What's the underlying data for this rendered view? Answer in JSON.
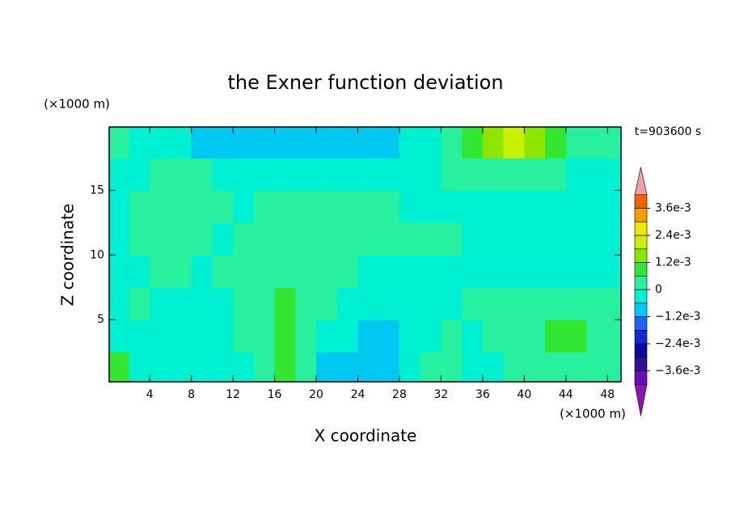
{
  "chart_data": {
    "type": "contour",
    "title": "the Exner function deviation",
    "x_label": "X coordinate",
    "y_label": "Z coordinate",
    "x_units": "(×1000 m)",
    "y_units": "(×1000 m)",
    "time_label": "t=903600 s",
    "xlim": [
      0.1,
      49.3
    ],
    "ylim": [
      0.2,
      19.9
    ],
    "xticks": [
      4,
      8,
      12,
      16,
      20,
      24,
      28,
      32,
      36,
      40,
      44,
      48
    ],
    "yticks": [
      5,
      10,
      15
    ],
    "x": [
      1,
      3,
      5,
      7,
      9,
      11,
      13,
      15,
      17,
      19,
      21,
      23,
      25,
      27,
      29,
      31,
      33,
      35,
      37,
      39,
      41,
      43,
      45,
      47,
      49
    ],
    "y": [
      1.25,
      3.75,
      6.25,
      8.75,
      11.25,
      13.75,
      16.25,
      18.75
    ],
    "z": [
      [
        0.0009,
        -0.0003,
        -0.0003,
        -0.0003,
        -0.0003,
        -0.0003,
        -0.0003,
        0.0003,
        0.0009,
        0.0003,
        -0.0008,
        -0.0008,
        -0.0008,
        -0.0008,
        -0.0003,
        0.0003,
        0.0003,
        -0.0003,
        -0.0003,
        0.0003,
        0.0003,
        0.0003,
        0.0003,
        0.0003,
        0.0003
      ],
      [
        -0.0003,
        -0.0003,
        -0.0003,
        -0.0003,
        -0.0003,
        -0.0003,
        0.0003,
        0.0003,
        0.0009,
        0.0003,
        -0.0003,
        -0.0003,
        -0.0008,
        -0.0008,
        -0.0003,
        -0.0003,
        0.0003,
        -0.0003,
        0.0003,
        0.0003,
        0.0003,
        0.0009,
        0.0009,
        0.0003,
        0.0003
      ],
      [
        -0.0003,
        0.0003,
        -0.0003,
        -0.0003,
        -0.0003,
        -0.0003,
        0.0003,
        0.0003,
        0.0009,
        0.0003,
        0.0003,
        -0.0003,
        -0.0003,
        -0.0003,
        -0.0003,
        -0.0003,
        -0.0003,
        0.0003,
        0.0003,
        0.0003,
        0.0003,
        0.0003,
        0.0003,
        0.0003,
        0.0003
      ],
      [
        -0.0003,
        -0.0003,
        0.0003,
        0.0003,
        -0.0003,
        0.0003,
        0.0003,
        0.0003,
        0.0003,
        0.0003,
        0.0003,
        0.0003,
        -0.0003,
        -0.0003,
        -0.0003,
        -0.0003,
        -0.0003,
        -0.0003,
        -0.0003,
        -0.0003,
        -0.0003,
        -0.0003,
        -0.0003,
        -0.0003,
        -0.0003
      ],
      [
        -0.0003,
        0.0003,
        0.0003,
        0.0003,
        0.0003,
        -0.0003,
        0.0003,
        0.0003,
        0.0003,
        0.0003,
        0.0003,
        0.0003,
        0.0003,
        0.0003,
        0.0003,
        0.0003,
        0.0003,
        -0.0003,
        -0.0003,
        -0.0003,
        -0.0003,
        -0.0003,
        -0.0003,
        -0.0003,
        -0.0003
      ],
      [
        -0.0003,
        0.0003,
        0.0003,
        0.0003,
        0.0003,
        0.0003,
        -0.0003,
        0.0003,
        0.0003,
        0.0003,
        0.0003,
        0.0003,
        0.0003,
        0.0003,
        -0.0003,
        -0.0003,
        -0.0003,
        -0.0003,
        -0.0003,
        -0.0003,
        -0.0003,
        -0.0003,
        -0.0003,
        -0.0003,
        -0.0003
      ],
      [
        -0.0003,
        -0.0003,
        0.0003,
        0.0003,
        0.0003,
        -0.0003,
        -0.0003,
        -0.0003,
        -0.0003,
        -0.0003,
        -0.0003,
        -0.0003,
        -0.0003,
        -0.0003,
        -0.0003,
        -0.0003,
        0.0003,
        0.0003,
        0.0003,
        0.0003,
        0.0003,
        0.0003,
        -0.0003,
        -0.0003,
        -0.0003
      ],
      [
        0.0003,
        -0.0003,
        -0.0003,
        -0.0003,
        -0.0008,
        -0.0008,
        -0.0008,
        -0.0008,
        -0.0008,
        -0.0008,
        -0.0008,
        -0.0008,
        -0.0008,
        -0.0008,
        -0.0003,
        -0.0003,
        0.0003,
        0.0009,
        0.0015,
        0.002,
        0.0015,
        0.0009,
        0.0003,
        0.0003,
        0.0003
      ]
    ],
    "levels": [
      -0.0042,
      -0.0036,
      -0.003,
      -0.0024,
      -0.0018,
      -0.0012,
      -0.0006,
      0,
      0.0006,
      0.0012,
      0.0018,
      0.0024,
      0.003,
      0.0036,
      0.0042
    ],
    "level_colors": [
      "#6a0fb0",
      "#30108c",
      "#0a0a9e",
      "#1428d8",
      "#1e64f0",
      "#00c8f0",
      "#00f0d2",
      "#28f09e",
      "#32e632",
      "#8ce600",
      "#c8f000",
      "#f0e600",
      "#f0a000",
      "#f06400"
    ],
    "over_color": "#f0a0a0",
    "under_color": "#8c14b4",
    "colorbar_ticks": [
      {
        "value": 0.0036,
        "label": "3.6e-3"
      },
      {
        "value": 0.0024,
        "label": "2.4e-3"
      },
      {
        "value": 0.0012,
        "label": "1.2e-3"
      },
      {
        "value": 0,
        "label": "0"
      },
      {
        "value": -0.0012,
        "label": "−1.2e-3"
      },
      {
        "value": -0.0024,
        "label": "−2.4e-3"
      },
      {
        "value": -0.0036,
        "label": "−3.6e-3"
      }
    ]
  }
}
